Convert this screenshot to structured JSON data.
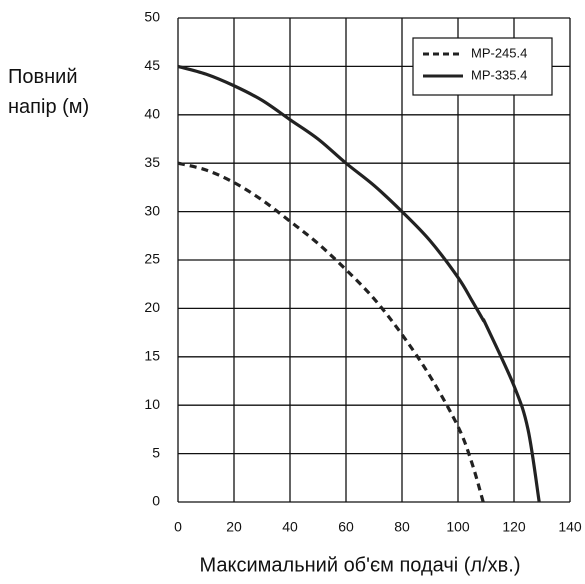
{
  "chart_data": {
    "type": "line",
    "x_label": "Максимальний об'єм подачі (л/хв.)",
    "y_label": "Повний напір (м)",
    "x": [
      0,
      10,
      20,
      30,
      40,
      50,
      60,
      70,
      80,
      90,
      100,
      105,
      109,
      110,
      120,
      125,
      129
    ],
    "series": [
      {
        "name": "MP-245.4",
        "color": "#222222",
        "dashed": true,
        "values": [
          35,
          34.3,
          33,
          31.2,
          29,
          26.7,
          24,
          21,
          17.3,
          13,
          7.8,
          4,
          0,
          null,
          null,
          null,
          null
        ]
      },
      {
        "name": "MP-335.4",
        "color": "#222222",
        "dashed": false,
        "values": [
          45,
          44.2,
          43,
          41.5,
          39.5,
          37.5,
          35,
          32.7,
          30,
          27,
          23.2,
          20.8,
          18.8,
          18.3,
          12,
          7.5,
          0
        ]
      }
    ],
    "xlim": [
      0,
      140
    ],
    "xticks": [
      0,
      20,
      40,
      60,
      80,
      100,
      120,
      140
    ],
    "ylim": [
      0,
      50
    ],
    "yticks": [
      0,
      5,
      10,
      15,
      20,
      25,
      30,
      35,
      40,
      45,
      50
    ],
    "grid": true,
    "legend": "top-right"
  }
}
